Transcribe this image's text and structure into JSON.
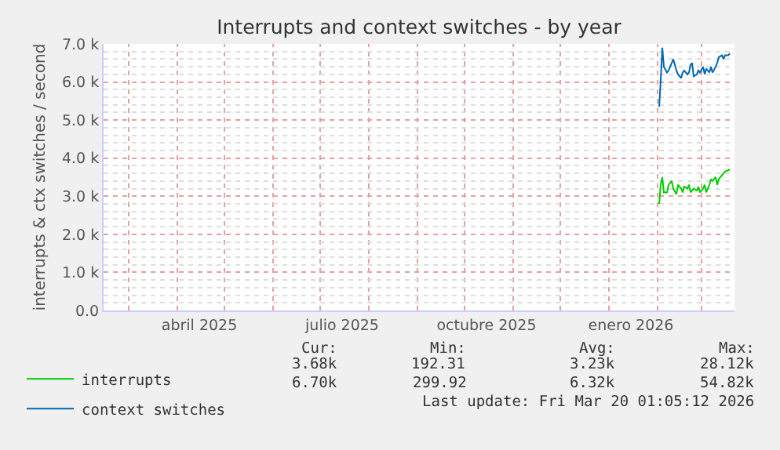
{
  "chart_data": {
    "type": "line",
    "title": "Interrupts and context switches - by year",
    "ylabel": "interrupts & ctx switches / second",
    "series": [
      {
        "name": "interrupts",
        "color": "#00cc00",
        "x": [
          "2026-02-02",
          "2026-02-03",
          "2026-02-04",
          "2026-02-05",
          "2026-02-07",
          "2026-02-08",
          "2026-02-10",
          "2026-02-11",
          "2026-02-13",
          "2026-02-14",
          "2026-02-16",
          "2026-02-17",
          "2026-02-18",
          "2026-02-20",
          "2026-02-21",
          "2026-02-22",
          "2026-02-24",
          "2026-02-26",
          "2026-02-27",
          "2026-02-28",
          "2026-03-02",
          "2026-03-03",
          "2026-03-04",
          "2026-03-06",
          "2026-03-07",
          "2026-03-08",
          "2026-03-10",
          "2026-03-11",
          "2026-03-12",
          "2026-03-14",
          "2026-03-16",
          "2026-03-19"
        ],
        "values": [
          2800,
          3300,
          3500,
          3100,
          3100,
          3300,
          3400,
          3200,
          3050,
          3300,
          3200,
          3100,
          3250,
          3200,
          3300,
          3100,
          3200,
          3150,
          3250,
          3100,
          3200,
          3300,
          3100,
          3300,
          3450,
          3400,
          3500,
          3300,
          3450,
          3550,
          3650,
          3700
        ]
      },
      {
        "name": "context switches",
        "color": "#0066b3",
        "x": [
          "2026-02-02",
          "2026-02-03",
          "2026-02-04",
          "2026-02-05",
          "2026-02-07",
          "2026-02-08",
          "2026-02-10",
          "2026-02-11",
          "2026-02-13",
          "2026-02-14",
          "2026-02-16",
          "2026-02-17",
          "2026-02-18",
          "2026-02-20",
          "2026-02-21",
          "2026-02-22",
          "2026-02-23",
          "2026-02-24",
          "2026-02-26",
          "2026-02-27",
          "2026-02-28",
          "2026-03-02",
          "2026-03-03",
          "2026-03-04",
          "2026-03-06",
          "2026-03-07",
          "2026-03-08",
          "2026-03-10",
          "2026-03-11",
          "2026-03-12",
          "2026-03-14",
          "2026-03-15",
          "2026-03-16",
          "2026-03-18",
          "2026-03-19"
        ],
        "values": [
          5350,
          6050,
          6900,
          6400,
          6250,
          6300,
          6500,
          6600,
          6300,
          6200,
          6100,
          6250,
          6300,
          6200,
          6250,
          6450,
          6500,
          6150,
          6200,
          6300,
          6250,
          6400,
          6200,
          6350,
          6250,
          6400,
          6250,
          6400,
          6500,
          6650,
          6700,
          6600,
          6700,
          6700,
          6750
        ]
      }
    ],
    "xlim": [
      "2025-02-13",
      "2026-03-22"
    ],
    "xticks": [
      {
        "value": "2025-03-01",
        "label": null
      },
      {
        "value": "2025-04-01",
        "label": null
      },
      {
        "value": "2025-04-15",
        "label": "abril 2025"
      },
      {
        "value": "2025-05-01",
        "label": null
      },
      {
        "value": "2025-06-01",
        "label": null
      },
      {
        "value": "2025-07-01",
        "label": null
      },
      {
        "value": "2025-07-15",
        "label": "julio 2025"
      },
      {
        "value": "2025-08-01",
        "label": null
      },
      {
        "value": "2025-09-01",
        "label": null
      },
      {
        "value": "2025-10-01",
        "label": null
      },
      {
        "value": "2025-10-15",
        "label": "octubre 2025"
      },
      {
        "value": "2025-11-01",
        "label": null
      },
      {
        "value": "2025-12-01",
        "label": null
      },
      {
        "value": "2026-01-01",
        "label": null
      },
      {
        "value": "2026-01-15",
        "label": "enero 2026"
      },
      {
        "value": "2026-02-01",
        "label": null
      },
      {
        "value": "2026-03-01",
        "label": null
      }
    ],
    "ylim": [
      0,
      7000
    ],
    "yticks": [
      {
        "value": 0,
        "label": "0.0"
      },
      {
        "value": 1000,
        "label": "1.0 k"
      },
      {
        "value": 2000,
        "label": "2.0 k"
      },
      {
        "value": 3000,
        "label": "3.0 k"
      },
      {
        "value": 4000,
        "label": "4.0 k"
      },
      {
        "value": 5000,
        "label": "5.0 k"
      },
      {
        "value": 6000,
        "label": "6.0 k"
      },
      {
        "value": 7000,
        "label": "7.0 k"
      }
    ],
    "grid": true,
    "legend": "bottom left",
    "marker": "none",
    "line_style": "solid",
    "annotations": [
      "Cur:",
      "Min:",
      "Avg:",
      "Max:",
      "3.68k",
      "192.31",
      "3.23k",
      "28.12k",
      "6.70k",
      "299.92",
      "6.32k",
      "54.82k",
      "Last update: Fri Mar 20 01:05:12 2026"
    ]
  }
}
